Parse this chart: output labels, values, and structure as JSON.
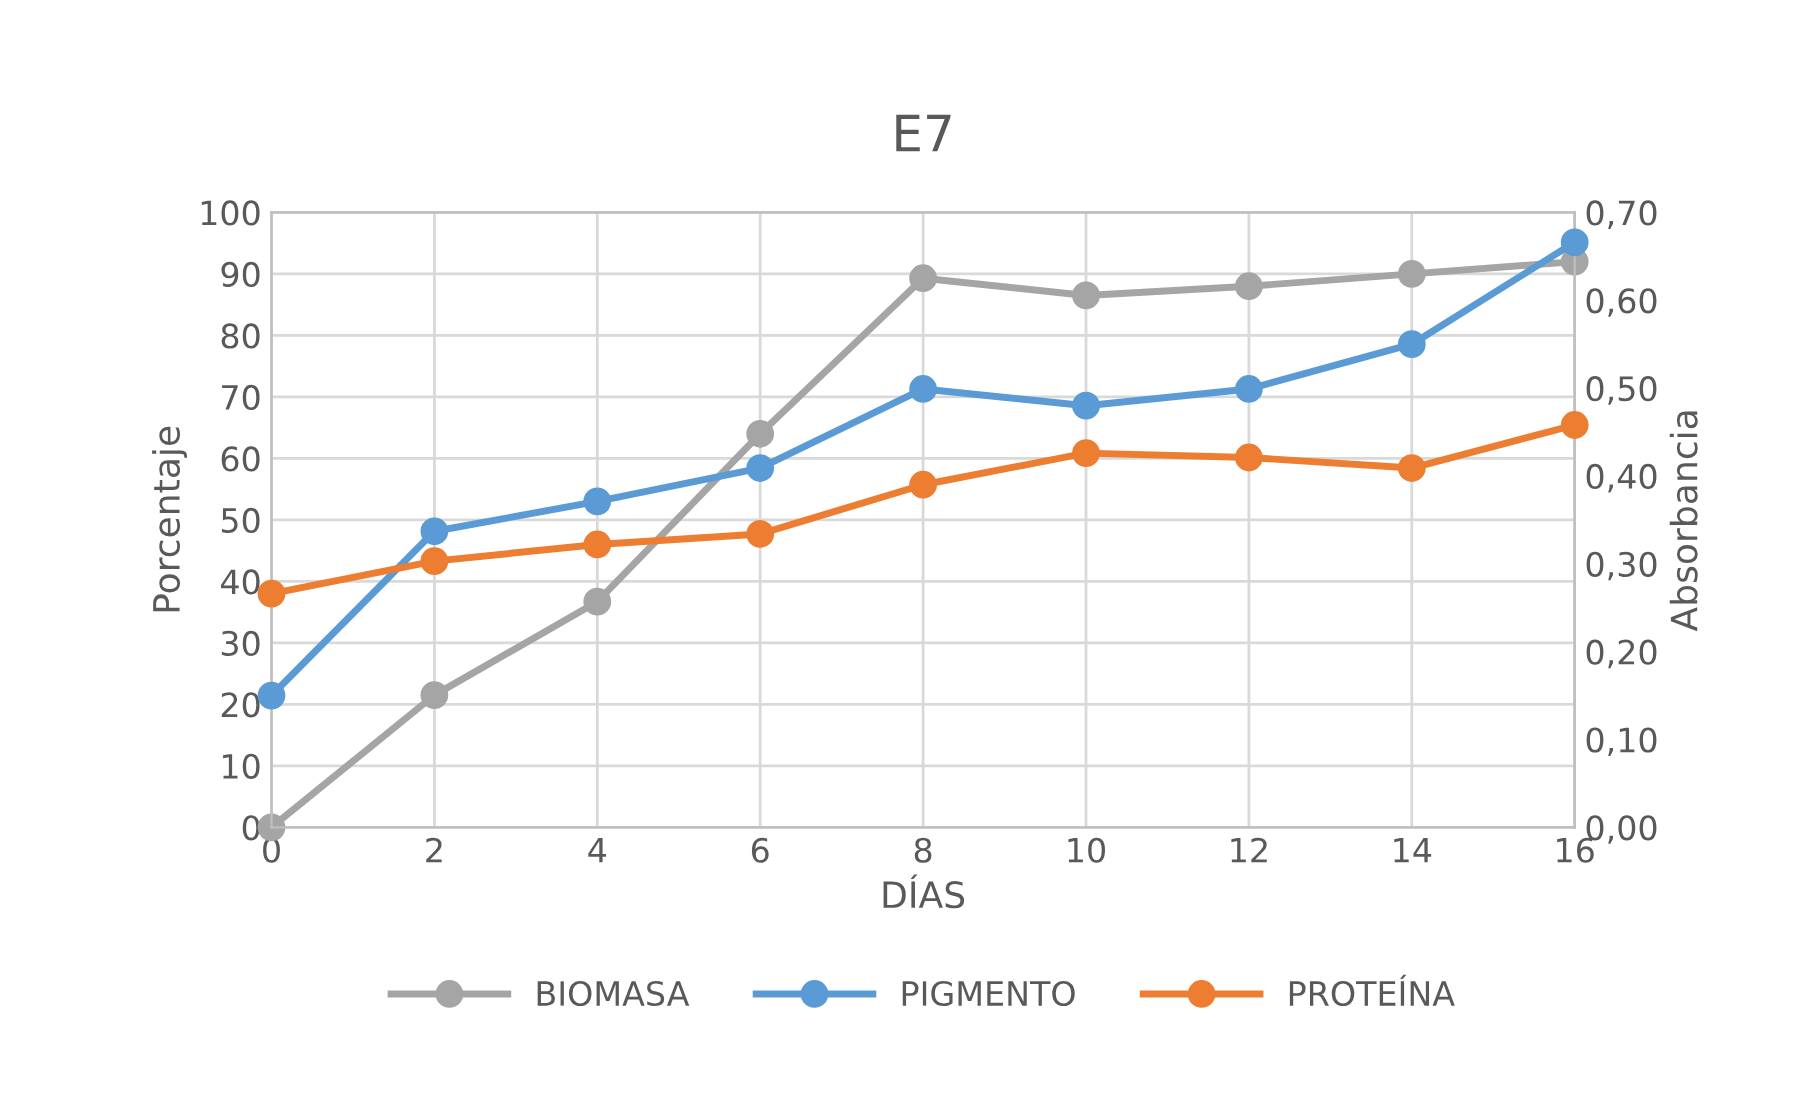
{
  "chart_data": {
    "type": "line",
    "title": "E7",
    "xlabel": "DÍAS",
    "ylabel": "Porcentaje",
    "y2label": "Absorbancia",
    "x": [
      0,
      2,
      4,
      6,
      8,
      10,
      12,
      14,
      16
    ],
    "xlim": [
      0,
      16
    ],
    "xticks": [
      0,
      2,
      4,
      6,
      8,
      10,
      12,
      14,
      16
    ],
    "ylim": [
      0,
      100
    ],
    "yticks": [
      0,
      10,
      20,
      30,
      40,
      50,
      60,
      70,
      80,
      90,
      100
    ],
    "y2lim": [
      0,
      0.7
    ],
    "y2ticks": [
      {
        "value": 0,
        "label": "0,00"
      },
      {
        "value": 0.1,
        "label": "0,10"
      },
      {
        "value": 0.2,
        "label": "0,20"
      },
      {
        "value": 0.3,
        "label": "0,30"
      },
      {
        "value": 0.4,
        "label": "0,40"
      },
      {
        "value": 0.5,
        "label": "0,50"
      },
      {
        "value": 0.6,
        "label": "0,60"
      },
      {
        "value": 0.7,
        "label": "0,70"
      }
    ],
    "series": [
      {
        "name": "BIOMASA",
        "color": "#a5a5a5",
        "values": [
          0,
          21.5,
          36.7,
          64,
          89.3,
          86.5,
          88,
          90,
          92
        ]
      },
      {
        "name": "PIGMENTO",
        "color": "#5b9bd5",
        "axis": "y2",
        "values": [
          0.15,
          0.337,
          0.371,
          0.409,
          0.499,
          0.48,
          0.499,
          0.55,
          0.666
        ]
      },
      {
        "name": "PROTEÍNA",
        "color": "#ed7d31",
        "axis": "y2",
        "values": [
          0.266,
          0.303,
          0.322,
          0.334,
          0.39,
          0.426,
          0.421,
          0.409,
          0.458
        ]
      }
    ],
    "marker": "circle",
    "line_style": "solid",
    "grid": true,
    "legend": "bottom"
  }
}
